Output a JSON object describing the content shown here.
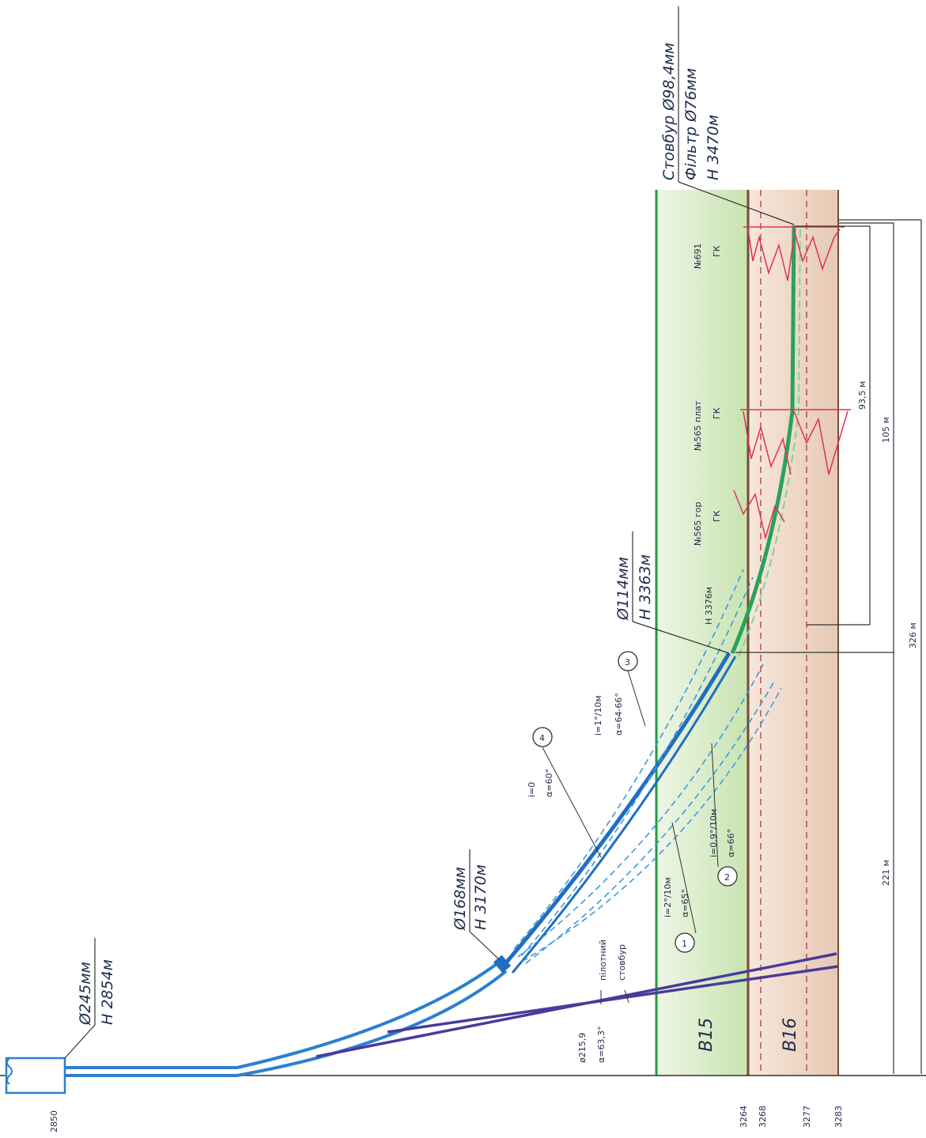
{
  "depth_ticks": [
    "2850",
    "3264",
    "3268",
    "3277",
    "3283"
  ],
  "strata": {
    "upper": "B15",
    "lower": "B16"
  },
  "casings": {
    "c245": {
      "diameter": "Ø245мм",
      "depth": "H 2854м"
    },
    "c168": {
      "diameter": "Ø168мм",
      "depth": "H 3170м"
    },
    "c114": {
      "diameter": "Ø114мм",
      "depth": "H 3363м"
    }
  },
  "final_hole": {
    "line1": "Стовбур Ø98,4мм",
    "line2": "Фільтр Ø76мм",
    "line3": "H 3470м"
  },
  "pilot": {
    "name": "пілотний",
    "name2": "стовбур",
    "diam": "ø215,9",
    "angle": "α=63,3°"
  },
  "wells": [
    {
      "name": "№691",
      "code": "ГК"
    },
    {
      "name": "№565 плат",
      "code": "ГК"
    },
    {
      "name": "№565 гор",
      "code": "ГК"
    }
  ],
  "point_depth": "H 3376м",
  "variants": [
    {
      "num": "1",
      "i": "i=2°/10м",
      "a": "α=65°"
    },
    {
      "num": "2",
      "i": "i=0,9°/10м",
      "a": "α=66°"
    },
    {
      "num": "3",
      "i": "i=1°/10м",
      "a": "α=64-66°"
    },
    {
      "num": "4",
      "i": "i=0",
      "a": "α=60°"
    }
  ],
  "dimensions": [
    "93,5 м",
    "105 м",
    "326 м",
    "221 м"
  ],
  "colors": {
    "casing": "#2d7fd0",
    "pilot": "#4a3a9c",
    "layer_b15": "#d6ebc4",
    "layer_b16": "#edd6c6",
    "log": "#e0305a",
    "filter": "#28a35a"
  }
}
